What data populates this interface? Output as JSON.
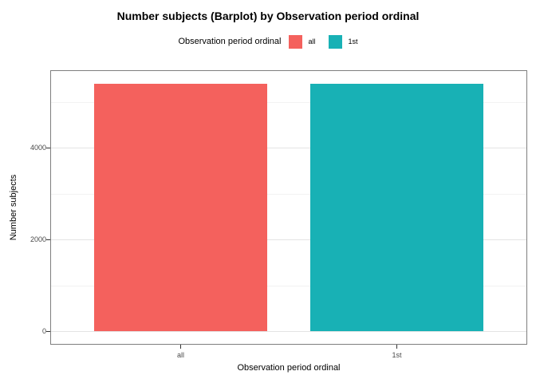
{
  "title": "Number subjects (Barplot) by Observation period ordinal",
  "legend": {
    "title": "Observation period ordinal",
    "items": [
      {
        "label": "all",
        "color": "#F4615D"
      },
      {
        "label": "1st",
        "color": "#18B1B5"
      }
    ]
  },
  "chart_data": {
    "type": "bar",
    "title": "Number subjects (Barplot) by Observation period ordinal",
    "categories": [
      "all",
      "1st"
    ],
    "values": [
      5400,
      5400
    ],
    "bar_colors": [
      "#F4615D",
      "#18B1B5"
    ],
    "xlabel": "Observation period ordinal",
    "ylabel": "Number subjects",
    "ylim": [
      -270,
      5670
    ],
    "yticks": [
      0,
      2000,
      4000
    ],
    "yticks_minor": [
      1000,
      3000,
      5000
    ],
    "grid": "horizontal major+minor",
    "legend_position": "top"
  },
  "colors": {
    "background": "#FFFFFF",
    "panel_background": "#FFFFFF",
    "panel_border": "#7E7E7E",
    "grid_major": "#E4E4E4",
    "grid_minor": "#F2F2F2",
    "axis_tick": "#333333",
    "tick_label": "#4A4A4A",
    "text": "#000000"
  }
}
